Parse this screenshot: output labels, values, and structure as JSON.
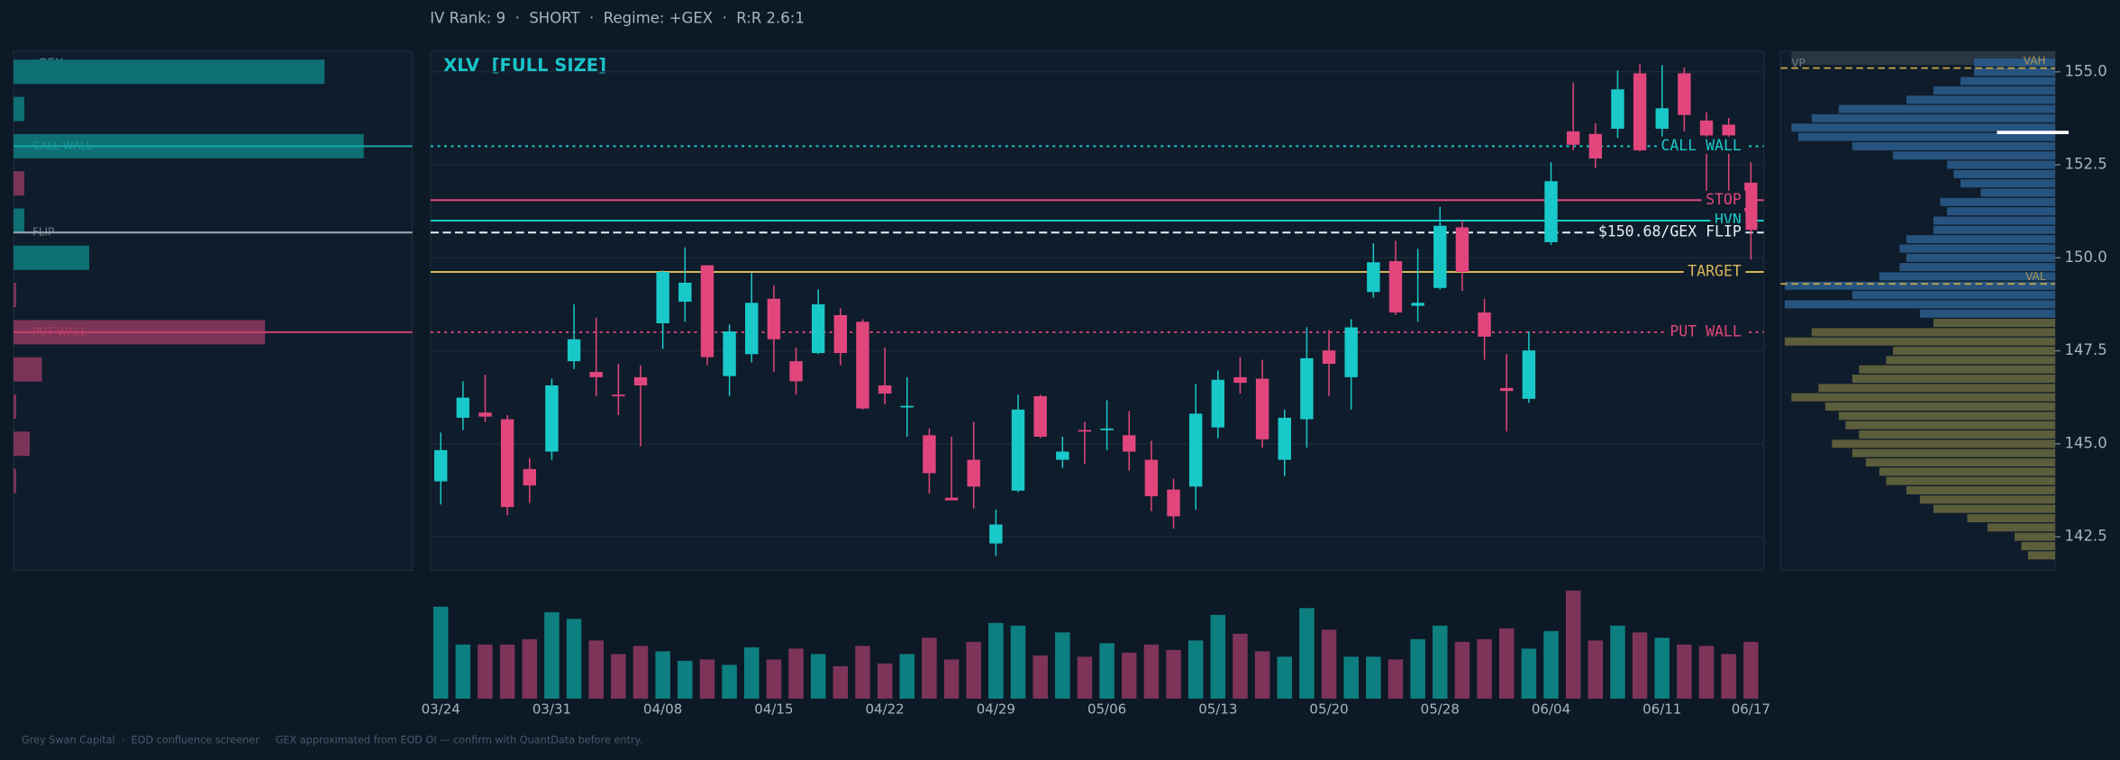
{
  "chart_data": {
    "type": "candlestick",
    "header": "IV Rank: 9  ·  SHORT  ·  Regime: +GEX  ·  R:R 2.6:1",
    "title": "XLV  [FULL SIZE]",
    "footer": "Grey Swan Capital  ·  EOD confluence screener     GEX approximated from EOD OI — confirm with QuantData before entry.",
    "up_color": "#19c9c9",
    "down_color": "#e0467c",
    "categories": [
      "03/24",
      null,
      null,
      null,
      null,
      "03/31",
      null,
      null,
      null,
      null,
      "04/08",
      null,
      null,
      null,
      null,
      "04/15",
      null,
      null,
      null,
      null,
      "04/22",
      null,
      null,
      null,
      null,
      "04/29",
      null,
      null,
      null,
      null,
      "05/06",
      null,
      null,
      null,
      null,
      "05/13",
      null,
      null,
      null,
      null,
      "05/20",
      null,
      null,
      null,
      null,
      "05/28",
      null,
      null,
      null,
      null,
      "06/04",
      null,
      null,
      null,
      null,
      "06/11",
      null,
      null,
      null,
      "06/17"
    ],
    "open": [
      143.99,
      145.7,
      145.84,
      145.66,
      144.32,
      144.79,
      147.22,
      146.93,
      146.32,
      146.79,
      148.24,
      148.82,
      149.8,
      146.82,
      147.41,
      148.9,
      147.22,
      147.44,
      148.46,
      148.28,
      146.57,
      145.99,
      145.23,
      143.55,
      144.57,
      142.32,
      143.74,
      146.28,
      144.57,
      145.37,
      145.37,
      145.23,
      144.57,
      143.77,
      143.85,
      145.44,
      146.79,
      146.75,
      144.57,
      145.66,
      147.51,
      146.79,
      149.08,
      149.91,
      148.71,
      149.19,
      150.82,
      148.53,
      146.5,
      146.21,
      150.42,
      153.4,
      153.33,
      153.47,
      154.96,
      153.47,
      154.96,
      153.69,
      153.58,
      152.02
    ],
    "high": [
      145.3,
      146.68,
      146.86,
      145.77,
      144.61,
      146.75,
      148.75,
      148.39,
      147.15,
      147.11,
      149.66,
      150.28,
      149.8,
      148.21,
      149.59,
      149.26,
      147.59,
      149.15,
      148.64,
      148.35,
      147.59,
      146.79,
      145.41,
      145.19,
      145.59,
      143.23,
      146.32,
      146.32,
      145.19,
      145.59,
      146.17,
      145.88,
      145.08,
      144.06,
      146.61,
      146.97,
      147.33,
      147.26,
      145.92,
      148.13,
      148.06,
      148.35,
      150.39,
      150.46,
      150.24,
      151.37,
      151.0,
      148.9,
      147.41,
      148.02,
      152.57,
      154.71,
      153.62,
      155.04,
      155.22,
      155.18,
      155.11,
      153.91,
      153.76,
      152.57
    ],
    "low": [
      143.37,
      145.37,
      145.59,
      143.08,
      143.41,
      144.57,
      147.01,
      146.28,
      145.77,
      144.93,
      147.55,
      148.28,
      147.11,
      146.28,
      147.19,
      146.93,
      146.32,
      147.41,
      147.11,
      145.92,
      146.06,
      145.19,
      143.66,
      143.48,
      143.26,
      141.99,
      143.7,
      145.15,
      144.35,
      144.46,
      144.83,
      144.28,
      143.19,
      142.72,
      143.23,
      145.15,
      146.35,
      144.9,
      144.13,
      144.9,
      146.28,
      145.92,
      148.93,
      148.46,
      148.28,
      149.15,
      149.11,
      147.26,
      145.33,
      146.1,
      150.35,
      152.89,
      152.42,
      153.22,
      152.86,
      153.26,
      153.4,
      151.8,
      151.8,
      149.95
    ],
    "close": [
      144.83,
      146.24,
      145.73,
      143.3,
      143.88,
      146.57,
      147.81,
      146.79,
      146.28,
      146.57,
      149.62,
      149.33,
      147.33,
      148.02,
      148.79,
      147.81,
      146.68,
      148.75,
      147.44,
      145.95,
      146.35,
      146.02,
      144.21,
      143.48,
      143.85,
      142.83,
      145.92,
      145.19,
      144.79,
      145.33,
      145.41,
      144.79,
      143.59,
      143.05,
      145.81,
      146.72,
      146.64,
      145.12,
      145.7,
      147.3,
      147.15,
      148.13,
      149.88,
      148.53,
      148.79,
      150.86,
      149.62,
      147.88,
      146.42,
      147.51,
      152.06,
      153.04,
      152.67,
      154.53,
      152.89,
      154.02,
      153.84,
      153.29,
      153.29,
      150.75
    ],
    "ylim": [
      141.6,
      155.55
    ],
    "yticks": [
      142.5,
      {
        "value": 145,
        "label": "145.0"
      },
      147.5,
      {
        "value": 150,
        "label": "150.0"
      },
      152.5,
      {
        "value": 155,
        "label": "155.0"
      }
    ],
    "grid": true,
    "levels": [
      {
        "label": "CALL WALL",
        "value": 153.0,
        "color": "#19c9c9",
        "dash": "dotted"
      },
      {
        "label": "STOP",
        "value": 151.55,
        "color": "#e0467c",
        "dash": "solid"
      },
      {
        "label": "HVN",
        "value": 151.0,
        "color": "#19c9c9",
        "dash": "solid"
      },
      {
        "label": "$150.68/GEX FLIP",
        "value": 150.68,
        "color": "#e8eef4",
        "dash": "dashed"
      },
      {
        "label": "TARGET",
        "value": 149.62,
        "color": "#d8b85a",
        "dash": "solid"
      },
      {
        "label": "PUT WALL",
        "value": 148.0,
        "color": "#e0467c",
        "dash": "dotted"
      }
    ],
    "volume": {
      "ylim": [
        0,
        80
      ],
      "up_color": "#0e7f80",
      "down_color": "#7e3459",
      "values": [
        68,
        40,
        40,
        40,
        44,
        64,
        59,
        43,
        33,
        39,
        35,
        28,
        29,
        25,
        38,
        29,
        37,
        33,
        24,
        39,
        26,
        33,
        45,
        29,
        42,
        56,
        54,
        32,
        49,
        31,
        41,
        34,
        40,
        36,
        43,
        62,
        48,
        35,
        31,
        67,
        51,
        31,
        31,
        29,
        44,
        54,
        42,
        44,
        52,
        37,
        50,
        80,
        43,
        54,
        49,
        45,
        40,
        39,
        33,
        42
      ]
    },
    "gex": {
      "label": "GEX",
      "xlim": [
        0,
        295
      ],
      "pos_color": "#0e6f74",
      "neg_color": "#7a3458",
      "strikes": [
        155,
        154,
        153,
        152,
        151,
        150,
        149,
        148,
        147,
        146,
        145,
        144
      ],
      "values": [
        230,
        8,
        259,
        -8,
        8,
        56,
        -2,
        -186,
        -21,
        -2,
        -12,
        -2
      ],
      "lines": [
        {
          "label": "CALL WALL",
          "value": 153.0,
          "color": "#17a7a7"
        },
        {
          "label": "FLIP",
          "value": 150.68,
          "color": "#9aa4ae"
        },
        {
          "label": "PUT WALL",
          "value": 148.0,
          "color": "#c0406a"
        }
      ]
    },
    "profile": {
      "label": "VP",
      "xlim": [
        0,
        203
      ],
      "split": 148.5,
      "upper_color": "#2b5d8e",
      "lower_color": "#6a683d",
      "poc": 153.37,
      "prices": [
        155.25,
        155,
        154.75,
        154.5,
        154.25,
        154,
        153.75,
        153.5,
        153.25,
        153,
        152.75,
        152.5,
        152.25,
        152,
        151.75,
        151.5,
        151.25,
        151,
        150.75,
        150.5,
        150.25,
        150,
        149.75,
        149.5,
        149.25,
        149,
        148.75,
        148.5,
        148.25,
        148,
        147.75,
        147.5,
        147.25,
        147,
        146.75,
        146.5,
        146.25,
        146,
        145.75,
        145.5,
        145.25,
        145,
        144.75,
        144.5,
        144.25,
        144,
        143.75,
        143.5,
        143.25,
        143,
        142.75,
        142.5,
        142.25,
        142
      ],
      "values": [
        60,
        60,
        70,
        90,
        110,
        160,
        180,
        195,
        190,
        150,
        120,
        80,
        75,
        70,
        55,
        85,
        80,
        90,
        90,
        110,
        115,
        110,
        115,
        130,
        200,
        150,
        200,
        100,
        90,
        180,
        200,
        120,
        125,
        145,
        150,
        175,
        195,
        170,
        160,
        155,
        145,
        165,
        150,
        140,
        130,
        125,
        110,
        100,
        90,
        65,
        50,
        30,
        25,
        20
      ],
      "lines": [
        {
          "label": "VAH",
          "value": 155.1,
          "color": "#c9a94a"
        },
        {
          "label": "VAL",
          "value": 149.3,
          "color": "#c9a94a"
        }
      ]
    }
  }
}
